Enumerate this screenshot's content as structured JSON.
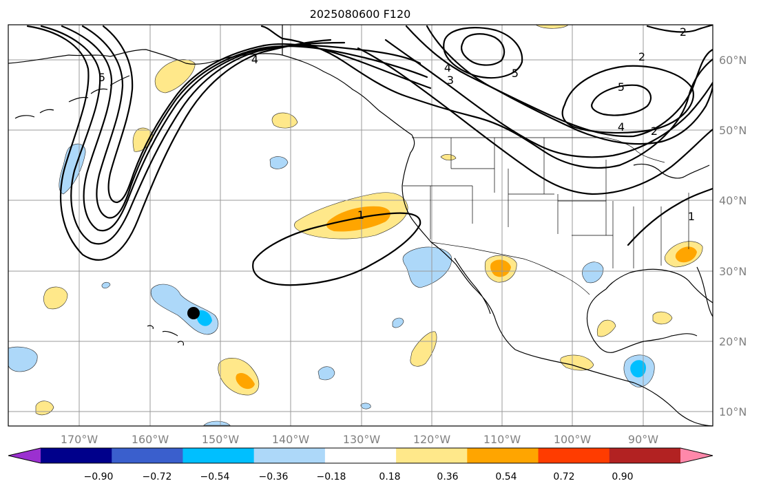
{
  "title": "2025080600 F120",
  "map": {
    "lon_ticks": [
      "170°W",
      "160°W",
      "150°W",
      "140°W",
      "130°W",
      "120°W",
      "110°W",
      "100°W",
      "90°W"
    ],
    "lat_ticks": [
      "60°N",
      "50°N",
      "40°N",
      "30°N",
      "20°N",
      "10°N"
    ],
    "gridlines": true,
    "contour_labels": [
      "5",
      "4",
      "4",
      "3",
      "5",
      "2",
      "2",
      "5",
      "4",
      "2",
      "1",
      "1"
    ],
    "marker": {
      "icon": "black-circle-marker"
    }
  },
  "colorbar": {
    "tick_labels": [
      "−0.90",
      "−0.72",
      "−0.54",
      "−0.36",
      "−0.18",
      "0.18",
      "0.36",
      "0.54",
      "0.72",
      "0.90"
    ],
    "colors": [
      "#9b30d0",
      "#00008b",
      "#3a5fcd",
      "#00bfff",
      "#add8f9",
      "#ffffff",
      "#ffe88a",
      "#ffa500",
      "#ff3c00",
      "#b22222",
      "#ff88aa"
    ]
  }
}
